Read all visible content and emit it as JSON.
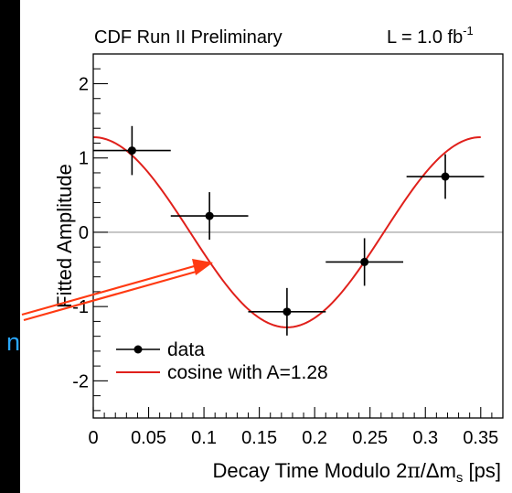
{
  "overlay": {
    "partial_text": "n",
    "arrow_color": "#ff3a12",
    "text_color": "#2aa8ff"
  },
  "chart_data": {
    "type": "scatter",
    "header_left": "CDF Run II Preliminary",
    "header_right": {
      "base": "L = 1.0 fb",
      "sup": "-1"
    },
    "ylabel": "Fitted Amplitude",
    "xlabel": {
      "pre": "Decay Time Modulo 2",
      "pi": "π",
      "mid": "/Δm",
      "sub": "s",
      "post": " [ps]"
    },
    "xlim": [
      0,
      0.37
    ],
    "ylim": [
      -2.5,
      2.4
    ],
    "x_ticks": [
      0,
      0.05,
      0.1,
      0.15,
      0.2,
      0.25,
      0.3,
      0.35
    ],
    "x_tick_labels": [
      "0",
      "0.05",
      "0.1",
      "0.15",
      "0.2",
      "0.25",
      "0.3",
      "0.35"
    ],
    "y_ticks": [
      -2,
      -1,
      0,
      1,
      2
    ],
    "y_tick_labels": [
      "-2",
      "-1",
      "0",
      "1",
      "2"
    ],
    "grid": false,
    "zero_line": true,
    "series": [
      {
        "name": "data",
        "kind": "points",
        "color": "#000000",
        "points": [
          {
            "x": 0.035,
            "y": 1.1,
            "xerr": 0.035,
            "yerr": 0.33
          },
          {
            "x": 0.105,
            "y": 0.22,
            "xerr": 0.035,
            "yerr": 0.32
          },
          {
            "x": 0.175,
            "y": -1.07,
            "xerr": 0.035,
            "yerr": 0.32
          },
          {
            "x": 0.245,
            "y": -0.4,
            "xerr": 0.035,
            "yerr": 0.32
          },
          {
            "x": 0.318,
            "y": 0.75,
            "xerr": 0.035,
            "yerr": 0.3
          }
        ]
      },
      {
        "name": "cosine with A=1.28",
        "kind": "curve",
        "color": "#e0201b",
        "amplitude": 1.28,
        "period": 0.35,
        "x_range": [
          0,
          0.35
        ]
      }
    ],
    "legend_position": "bottom-left"
  }
}
